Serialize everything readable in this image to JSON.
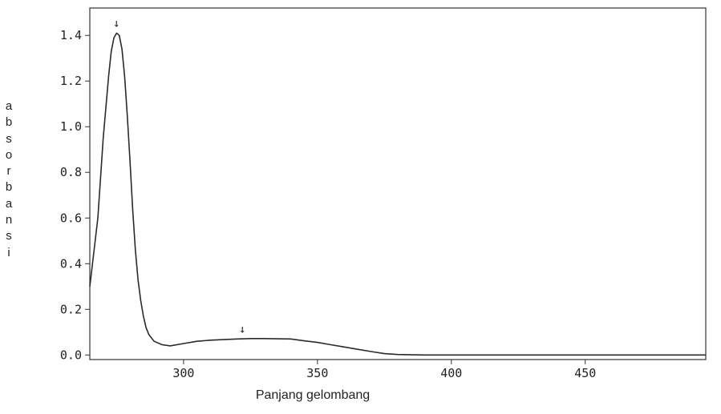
{
  "chart_data": {
    "type": "line",
    "title": "",
    "xlabel": "Panjang gelombang",
    "ylabel": "absorbansi",
    "xlim": [
      265,
      495
    ],
    "ylim": [
      -0.02,
      1.52
    ],
    "x_ticks": [
      300,
      350,
      400,
      450
    ],
    "x_tick_labels": [
      "300",
      "350",
      "400",
      "450"
    ],
    "y_ticks": [
      0.0,
      0.2,
      0.4,
      0.6,
      0.8,
      1.0,
      1.2,
      1.4
    ],
    "y_tick_labels": [
      "0.0",
      "0.2",
      "0.4",
      "0.6",
      "0.8",
      "1.0",
      "1.2",
      "1.4"
    ],
    "grid": false,
    "series": [
      {
        "x": [
          265,
          268,
          270,
          272,
          273,
          274,
          275,
          276,
          277,
          278,
          279,
          280,
          281,
          282,
          283,
          284,
          285,
          286,
          287,
          289,
          292,
          295,
          300,
          305,
          310,
          320,
          325,
          330,
          340,
          345,
          350,
          355,
          360,
          365,
          370,
          375,
          380,
          390,
          400,
          420,
          450,
          495
        ],
        "y": [
          0.3,
          0.6,
          0.95,
          1.22,
          1.33,
          1.39,
          1.41,
          1.4,
          1.34,
          1.22,
          1.05,
          0.85,
          0.64,
          0.46,
          0.33,
          0.24,
          0.17,
          0.12,
          0.09,
          0.06,
          0.045,
          0.04,
          0.05,
          0.06,
          0.065,
          0.07,
          0.072,
          0.072,
          0.07,
          0.062,
          0.055,
          0.045,
          0.035,
          0.025,
          0.015,
          0.006,
          0.002,
          0.0,
          0.0,
          0.0,
          0.0,
          0.0
        ]
      }
    ],
    "markers": [
      {
        "x": 275,
        "y": 1.41,
        "label": "↓"
      },
      {
        "x": 322,
        "y": 0.07,
        "label": "↓"
      }
    ]
  }
}
